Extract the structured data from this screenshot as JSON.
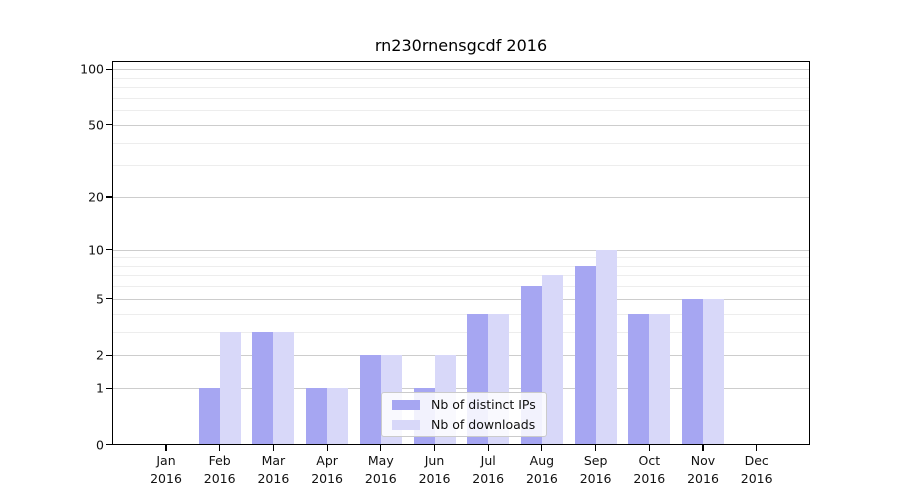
{
  "chart_data": {
    "type": "bar",
    "title": "rn230rnensgcdf 2016",
    "categories": [
      "Jan",
      "Feb",
      "Mar",
      "Apr",
      "May",
      "Jun",
      "Jul",
      "Aug",
      "Sep",
      "Oct",
      "Nov",
      "Dec"
    ],
    "category_year": "2016",
    "series": [
      {
        "name": "Nb of distinct IPs",
        "color": "#a6a6f2",
        "values": [
          0,
          1,
          3,
          1,
          2,
          1,
          4,
          6,
          8,
          4,
          5,
          0
        ]
      },
      {
        "name": "Nb of downloads",
        "color": "#d8d8f9",
        "values": [
          0,
          3,
          3,
          1,
          2,
          2,
          4,
          7,
          10,
          4,
          5,
          0
        ]
      }
    ],
    "xlabel": "",
    "ylabel": "",
    "y_axis": {
      "scale": "log1p",
      "ticks": [
        0,
        1,
        2,
        5,
        10,
        20,
        50,
        100
      ],
      "minor_ticks": [
        3,
        4,
        6,
        7,
        8,
        9,
        30,
        40,
        60,
        70,
        80,
        90
      ],
      "ylim": [
        0,
        111
      ]
    },
    "grid": {
      "major_color": "#cdcdcd",
      "minor_color": "#ededed",
      "on": true
    },
    "legend_position": "lower center",
    "axis_color": "#000000",
    "background_color": "#ffffff"
  }
}
